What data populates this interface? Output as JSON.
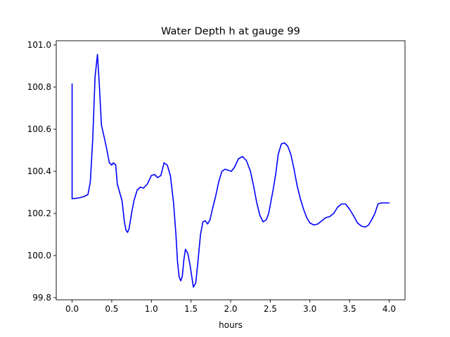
{
  "chart_data": {
    "type": "line",
    "title": "Water Depth h at gauge 99",
    "xlabel": "hours",
    "ylabel": "",
    "xlim": [
      -0.2,
      4.2
    ],
    "ylim": [
      99.79,
      101.02
    ],
    "xticks": [
      0.0,
      0.5,
      1.0,
      1.5,
      2.0,
      2.5,
      3.0,
      3.5,
      4.0
    ],
    "xtick_labels": [
      "0.0",
      "0.5",
      "1.0",
      "1.5",
      "2.0",
      "2.5",
      "3.0",
      "3.5",
      "4.0"
    ],
    "yticks": [
      99.8,
      100.0,
      100.2,
      100.4,
      100.6,
      100.8,
      101.0
    ],
    "ytick_labels": [
      "99.8",
      "100.0",
      "100.2",
      "100.4",
      "100.6",
      "100.8",
      "101.0"
    ],
    "grid": false,
    "series": [
      {
        "name": "",
        "color": "#0000ff",
        "x": [
          0.0,
          0.0,
          0.05,
          0.1,
          0.15,
          0.2,
          0.23,
          0.26,
          0.29,
          0.32,
          0.345,
          0.37,
          0.4,
          0.44,
          0.47,
          0.5,
          0.52,
          0.55,
          0.57,
          0.6,
          0.63,
          0.66,
          0.68,
          0.7,
          0.72,
          0.75,
          0.78,
          0.82,
          0.86,
          0.9,
          0.95,
          1.0,
          1.04,
          1.08,
          1.12,
          1.16,
          1.2,
          1.24,
          1.28,
          1.31,
          1.33,
          1.35,
          1.37,
          1.39,
          1.41,
          1.43,
          1.46,
          1.49,
          1.51,
          1.53,
          1.56,
          1.59,
          1.62,
          1.65,
          1.68,
          1.71,
          1.74,
          1.77,
          1.81,
          1.85,
          1.89,
          1.93,
          1.97,
          2.01,
          2.05,
          2.1,
          2.15,
          2.2,
          2.25,
          2.29,
          2.33,
          2.37,
          2.41,
          2.45,
          2.48,
          2.51,
          2.54,
          2.57,
          2.6,
          2.64,
          2.68,
          2.72,
          2.76,
          2.8,
          2.84,
          2.88,
          2.92,
          2.96,
          3.0,
          3.05,
          3.1,
          3.15,
          3.2,
          3.25,
          3.3,
          3.35,
          3.4,
          3.45,
          3.5,
          3.55,
          3.6,
          3.65,
          3.7,
          3.74,
          3.78,
          3.82,
          3.86,
          3.9,
          3.95,
          4.0
        ],
        "y": [
          100.815,
          100.27,
          100.272,
          100.275,
          100.28,
          100.29,
          100.35,
          100.55,
          100.85,
          100.955,
          100.8,
          100.62,
          100.57,
          100.5,
          100.44,
          100.43,
          100.44,
          100.43,
          100.34,
          100.3,
          100.26,
          100.16,
          100.12,
          100.11,
          100.13,
          100.2,
          100.26,
          100.31,
          100.325,
          100.32,
          100.34,
          100.38,
          100.385,
          100.37,
          100.38,
          100.44,
          100.43,
          100.38,
          100.25,
          100.1,
          99.97,
          99.9,
          99.88,
          99.9,
          99.98,
          100.03,
          100.01,
          99.95,
          99.9,
          99.85,
          99.87,
          99.98,
          100.1,
          100.16,
          100.165,
          100.15,
          100.17,
          100.22,
          100.28,
          100.35,
          100.4,
          100.41,
          100.405,
          100.4,
          100.42,
          100.46,
          100.47,
          100.45,
          100.4,
          100.33,
          100.25,
          100.19,
          100.16,
          100.17,
          100.2,
          100.26,
          100.32,
          100.39,
          100.48,
          100.53,
          100.535,
          100.52,
          100.48,
          100.41,
          100.33,
          100.27,
          100.22,
          100.18,
          100.155,
          100.145,
          100.15,
          100.165,
          100.18,
          100.185,
          100.2,
          100.23,
          100.245,
          100.245,
          100.22,
          100.19,
          100.155,
          100.14,
          100.135,
          100.145,
          100.17,
          100.2,
          100.245,
          100.25,
          100.25,
          100.25
        ]
      }
    ]
  }
}
